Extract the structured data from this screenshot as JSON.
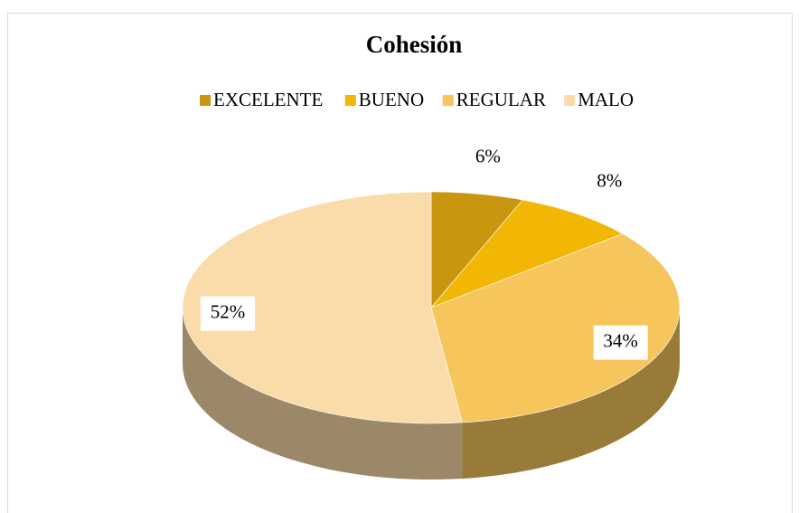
{
  "chart_data": {
    "type": "pie",
    "title": "Cohesión",
    "categories": [
      "EXCELENTE",
      "BUENO",
      "REGULAR",
      "MALO"
    ],
    "values": [
      6,
      8,
      34,
      52
    ],
    "value_labels": [
      "6%",
      "8%",
      "34%",
      "52%"
    ],
    "colors": [
      "#c9960f",
      "#f2b705",
      "#f6c65c",
      "#f9dcaa"
    ],
    "legend": "top"
  }
}
